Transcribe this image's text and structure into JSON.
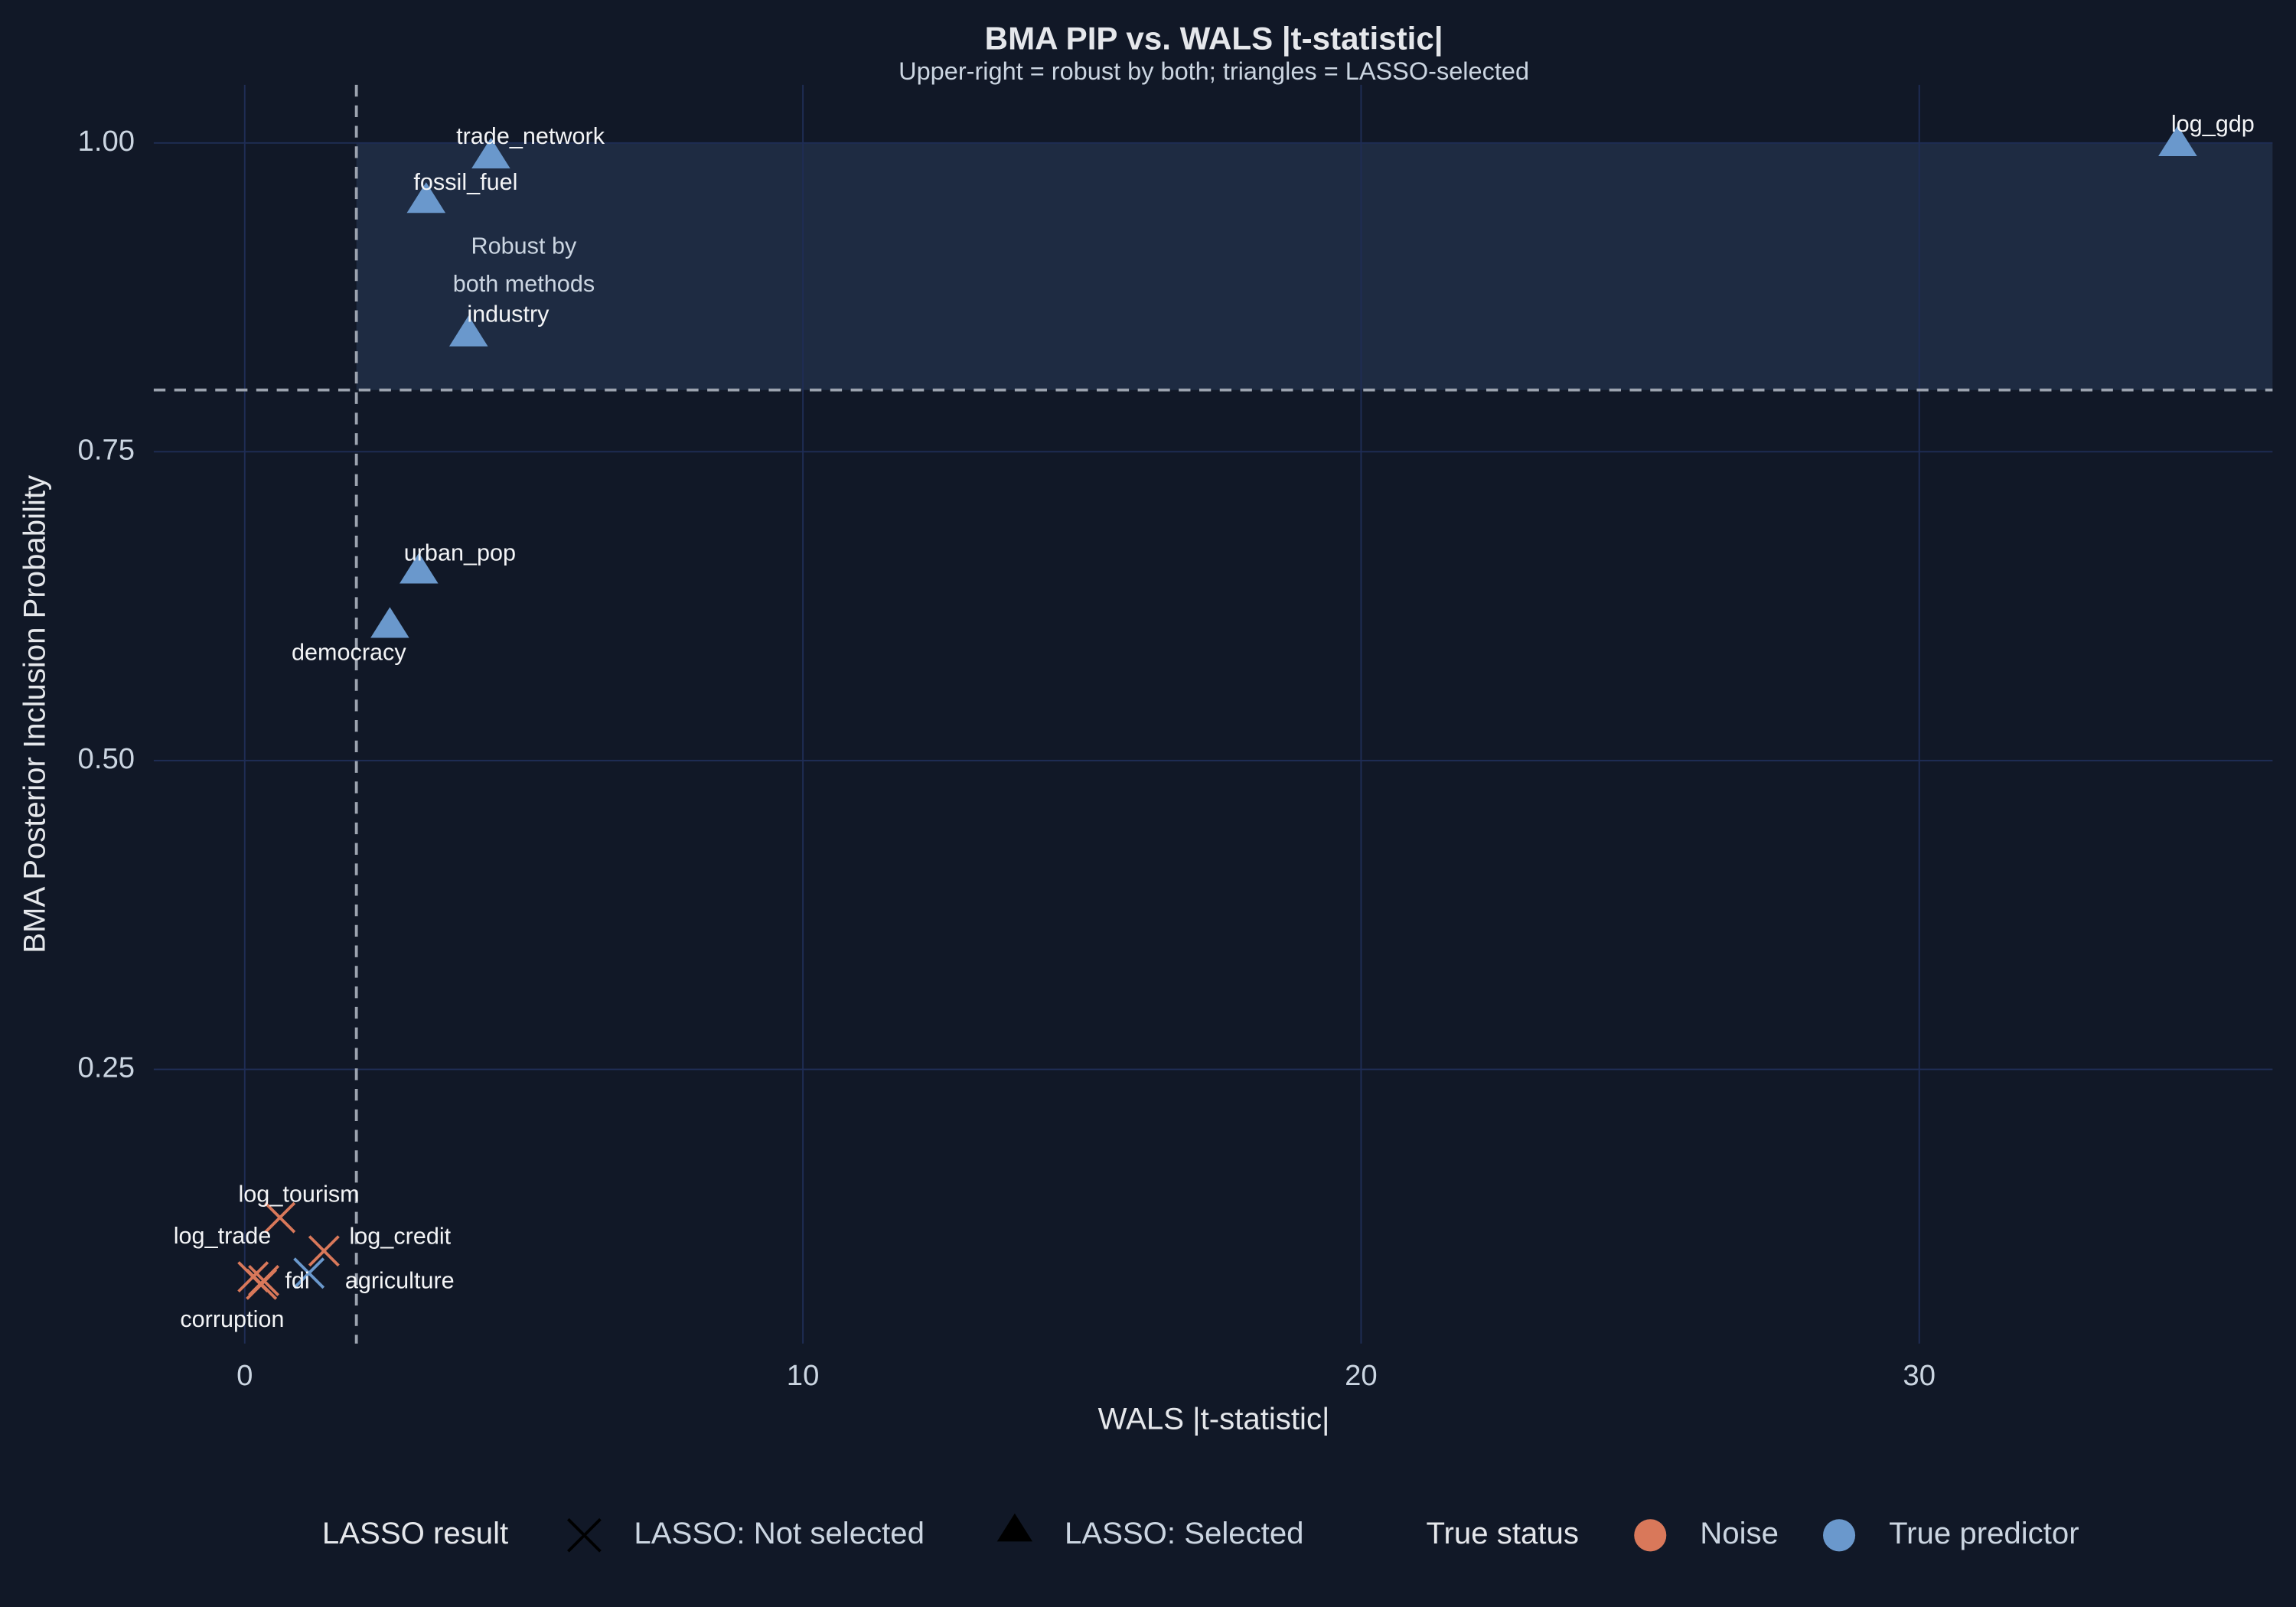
{
  "chart_data": {
    "type": "scatter",
    "title": "BMA PIP vs. WALS |t-statistic|",
    "subtitle": "Upper-right = robust by both; triangles = LASSO-selected",
    "x_label": "WALS |t-statistic|",
    "y_label": "BMA Posterior Inclusion Probability",
    "xlim": [
      -1.63,
      36.33
    ],
    "ylim": [
      0.028,
      1.047
    ],
    "xticks": [
      0,
      10,
      20,
      30
    ],
    "yticks": [
      {
        "value": 0.25,
        "label": "0.25"
      },
      {
        "value": 0.5,
        "label": "0.50"
      },
      {
        "value": 0.75,
        "label": "0.75"
      },
      {
        "value": 1,
        "label": "1.00"
      }
    ],
    "grid": true,
    "thresholds": {
      "x": 2,
      "y": 0.8
    },
    "annotation": {
      "lines": [
        "Robust by",
        "both methods"
      ],
      "x": 5.0,
      "y": 0.9
    },
    "points": {
      "labels": [
        "log_gdp",
        "trade_network",
        "fossil_fuel",
        "industry",
        "urban_pop",
        "democracy",
        "log_tourism",
        "log_credit",
        "agriculture",
        "fdi",
        "log_trade",
        "corruption"
      ],
      "x": [
        34.63,
        4.41,
        3.25,
        4.01,
        3.12,
        2.6,
        0.63,
        1.42,
        1.15,
        0.34,
        0.15,
        0.3
      ],
      "y": [
        1.0,
        0.99,
        0.954,
        0.846,
        0.654,
        0.61,
        0.13,
        0.103,
        0.085,
        0.079,
        0.082,
        0.076
      ],
      "lasso_selected": [
        true,
        true,
        true,
        true,
        true,
        true,
        false,
        false,
        false,
        false,
        false,
        false
      ],
      "true_predictor": [
        true,
        true,
        true,
        true,
        true,
        true,
        false,
        false,
        true,
        false,
        false,
        false
      ]
    },
    "shape_legend": {
      "title": "LASSO result",
      "items": [
        "LASSO: Not selected",
        "LASSO: Selected"
      ]
    },
    "color_legend": {
      "title": "True status",
      "items": [
        {
          "name": "Noise",
          "color": "#d9785a"
        },
        {
          "name": "True predictor",
          "color": "#6a98cc"
        }
      ]
    }
  }
}
